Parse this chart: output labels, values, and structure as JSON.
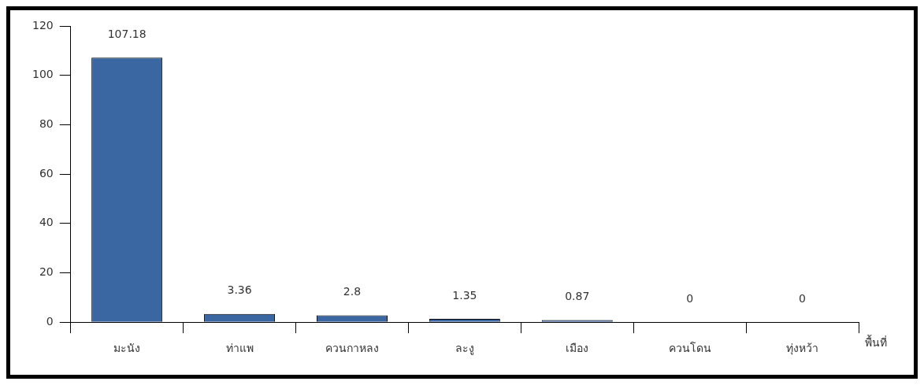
{
  "chart_data": {
    "type": "bar",
    "xlabel": "พื้นที่",
    "categories": [
      "มะนัง",
      "ท่าแพ",
      "ควนกาหลง",
      "ละงู",
      "เมือง",
      "ควนโดน",
      "ทุ่งหว้า"
    ],
    "values": [
      107.18,
      3.36,
      2.8,
      1.35,
      0.87,
      0,
      0
    ],
    "color": "#3a67a2",
    "ylim": [
      0,
      120
    ],
    "yticks": [
      0,
      20,
      40,
      60,
      80,
      100,
      120
    ],
    "grid": false,
    "legend": false,
    "data_labels": true
  }
}
